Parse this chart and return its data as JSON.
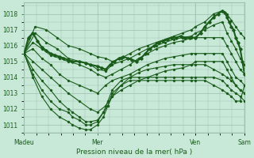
{
  "xlabel": "Pression niveau de la mer( hPa )",
  "xlabels": [
    "Madeu",
    "Mer",
    "Ven",
    "Sam"
  ],
  "xtick_positions": [
    0.0,
    0.333,
    0.778,
    1.0
  ],
  "ylim": [
    1010.5,
    1018.7
  ],
  "yticks": [
    1011,
    1012,
    1013,
    1014,
    1015,
    1016,
    1017,
    1018
  ],
  "bg_color": "#c8e8d8",
  "grid_color": "#9dbfaf",
  "line_color": "#1a5c1a",
  "lines": [
    [
      [
        0,
        1015.5
      ],
      [
        0.05,
        1017.2
      ],
      [
        0.1,
        1017.0
      ],
      [
        0.15,
        1016.5
      ],
      [
        0.2,
        1016.0
      ],
      [
        0.25,
        1015.8
      ],
      [
        0.3,
        1015.5
      ],
      [
        0.333,
        1015.3
      ],
      [
        0.37,
        1015.2
      ],
      [
        0.4,
        1015.0
      ],
      [
        0.44,
        1015.2
      ],
      [
        0.48,
        1015.5
      ],
      [
        0.52,
        1015.8
      ],
      [
        0.56,
        1016.0
      ],
      [
        0.6,
        1016.2
      ],
      [
        0.64,
        1016.4
      ],
      [
        0.68,
        1016.6
      ],
      [
        0.72,
        1016.8
      ],
      [
        0.76,
        1017.0
      ],
      [
        0.778,
        1017.2
      ],
      [
        0.82,
        1017.5
      ],
      [
        0.86,
        1018.0
      ],
      [
        0.9,
        1018.2
      ],
      [
        0.92,
        1018.0
      ],
      [
        0.94,
        1017.6
      ],
      [
        0.96,
        1017.2
      ],
      [
        0.98,
        1016.8
      ],
      [
        1.0,
        1016.5
      ]
    ],
    [
      [
        0,
        1015.5
      ],
      [
        0.05,
        1016.8
      ],
      [
        0.1,
        1016.2
      ],
      [
        0.15,
        1015.8
      ],
      [
        0.2,
        1015.2
      ],
      [
        0.25,
        1015.0
      ],
      [
        0.3,
        1014.8
      ],
      [
        0.333,
        1014.5
      ],
      [
        0.37,
        1014.4
      ],
      [
        0.4,
        1014.8
      ],
      [
        0.44,
        1015.0
      ],
      [
        0.48,
        1015.2
      ],
      [
        0.52,
        1015.5
      ],
      [
        0.56,
        1015.8
      ],
      [
        0.6,
        1016.0
      ],
      [
        0.64,
        1016.2
      ],
      [
        0.68,
        1016.4
      ],
      [
        0.72,
        1016.5
      ],
      [
        0.76,
        1016.6
      ],
      [
        0.778,
        1016.8
      ],
      [
        0.82,
        1017.0
      ],
      [
        0.86,
        1017.3
      ],
      [
        0.9,
        1017.5
      ],
      [
        0.92,
        1016.8
      ],
      [
        0.94,
        1016.3
      ],
      [
        0.96,
        1015.8
      ],
      [
        0.98,
        1015.2
      ],
      [
        1.0,
        1014.8
      ]
    ],
    [
      [
        0,
        1015.5
      ],
      [
        0.04,
        1016.2
      ],
      [
        0.08,
        1015.8
      ],
      [
        0.12,
        1015.4
      ],
      [
        0.16,
        1015.2
      ],
      [
        0.2,
        1015.0
      ],
      [
        0.25,
        1014.8
      ],
      [
        0.3,
        1014.5
      ],
      [
        0.333,
        1014.2
      ],
      [
        0.37,
        1014.0
      ],
      [
        0.4,
        1014.2
      ],
      [
        0.44,
        1014.5
      ],
      [
        0.48,
        1014.8
      ],
      [
        0.52,
        1015.2
      ],
      [
        0.56,
        1015.5
      ],
      [
        0.6,
        1015.8
      ],
      [
        0.64,
        1016.0
      ],
      [
        0.68,
        1016.2
      ],
      [
        0.72,
        1016.3
      ],
      [
        0.76,
        1016.5
      ],
      [
        0.778,
        1016.5
      ],
      [
        0.82,
        1016.5
      ],
      [
        0.86,
        1016.5
      ],
      [
        0.9,
        1016.5
      ],
      [
        0.92,
        1016.0
      ],
      [
        0.94,
        1015.5
      ],
      [
        0.96,
        1015.0
      ],
      [
        0.98,
        1014.5
      ],
      [
        1.0,
        1014.2
      ]
    ],
    [
      [
        0,
        1015.5
      ],
      [
        0.04,
        1015.8
      ],
      [
        0.08,
        1015.2
      ],
      [
        0.12,
        1014.8
      ],
      [
        0.16,
        1014.2
      ],
      [
        0.2,
        1013.8
      ],
      [
        0.25,
        1013.5
      ],
      [
        0.3,
        1013.2
      ],
      [
        0.333,
        1013.0
      ],
      [
        0.37,
        1013.5
      ],
      [
        0.4,
        1013.8
      ],
      [
        0.44,
        1014.0
      ],
      [
        0.48,
        1014.2
      ],
      [
        0.52,
        1014.5
      ],
      [
        0.56,
        1014.8
      ],
      [
        0.6,
        1015.0
      ],
      [
        0.64,
        1015.2
      ],
      [
        0.68,
        1015.3
      ],
      [
        0.72,
        1015.4
      ],
      [
        0.76,
        1015.5
      ],
      [
        0.778,
        1015.5
      ],
      [
        0.82,
        1015.5
      ],
      [
        0.86,
        1015.5
      ],
      [
        0.9,
        1015.5
      ],
      [
        0.92,
        1015.0
      ],
      [
        0.94,
        1014.5
      ],
      [
        0.96,
        1014.0
      ],
      [
        0.98,
        1013.8
      ],
      [
        1.0,
        1013.5
      ]
    ],
    [
      [
        0,
        1015.5
      ],
      [
        0.04,
        1015.0
      ],
      [
        0.08,
        1014.5
      ],
      [
        0.12,
        1014.0
      ],
      [
        0.16,
        1013.5
      ],
      [
        0.2,
        1013.0
      ],
      [
        0.25,
        1012.5
      ],
      [
        0.3,
        1012.0
      ],
      [
        0.333,
        1011.8
      ],
      [
        0.37,
        1012.2
      ],
      [
        0.4,
        1012.8
      ],
      [
        0.44,
        1013.2
      ],
      [
        0.48,
        1013.5
      ],
      [
        0.52,
        1013.8
      ],
      [
        0.56,
        1014.0
      ],
      [
        0.6,
        1014.2
      ],
      [
        0.64,
        1014.4
      ],
      [
        0.68,
        1014.5
      ],
      [
        0.72,
        1014.6
      ],
      [
        0.76,
        1014.8
      ],
      [
        0.778,
        1015.0
      ],
      [
        0.82,
        1015.0
      ],
      [
        0.86,
        1015.0
      ],
      [
        0.9,
        1015.0
      ],
      [
        0.92,
        1014.5
      ],
      [
        0.94,
        1014.0
      ],
      [
        0.96,
        1013.5
      ],
      [
        0.98,
        1013.2
      ],
      [
        1.0,
        1013.0
      ]
    ],
    [
      [
        0,
        1015.5
      ],
      [
        0.04,
        1014.5
      ],
      [
        0.08,
        1013.8
      ],
      [
        0.12,
        1013.2
      ],
      [
        0.16,
        1012.5
      ],
      [
        0.2,
        1012.0
      ],
      [
        0.22,
        1011.8
      ],
      [
        0.25,
        1011.5
      ],
      [
        0.28,
        1011.2
      ],
      [
        0.3,
        1011.2
      ],
      [
        0.333,
        1011.3
      ],
      [
        0.36,
        1011.8
      ],
      [
        0.38,
        1012.2
      ],
      [
        0.4,
        1012.8
      ],
      [
        0.44,
        1013.5
      ],
      [
        0.48,
        1014.0
      ],
      [
        0.52,
        1014.3
      ],
      [
        0.56,
        1014.5
      ],
      [
        0.6,
        1014.6
      ],
      [
        0.64,
        1014.7
      ],
      [
        0.68,
        1014.8
      ],
      [
        0.72,
        1014.8
      ],
      [
        0.76,
        1014.8
      ],
      [
        0.778,
        1014.8
      ],
      [
        0.82,
        1014.8
      ],
      [
        0.86,
        1014.5
      ],
      [
        0.9,
        1014.2
      ],
      [
        0.92,
        1014.0
      ],
      [
        0.94,
        1013.8
      ],
      [
        0.96,
        1013.5
      ],
      [
        0.98,
        1013.2
      ],
      [
        1.0,
        1013.0
      ]
    ],
    [
      [
        0,
        1015.5
      ],
      [
        0.04,
        1014.2
      ],
      [
        0.08,
        1013.2
      ],
      [
        0.12,
        1012.5
      ],
      [
        0.16,
        1012.0
      ],
      [
        0.2,
        1011.8
      ],
      [
        0.22,
        1011.5
      ],
      [
        0.25,
        1011.3
      ],
      [
        0.28,
        1011.0
      ],
      [
        0.3,
        1011.0
      ],
      [
        0.333,
        1011.2
      ],
      [
        0.36,
        1011.8
      ],
      [
        0.38,
        1012.5
      ],
      [
        0.4,
        1013.2
      ],
      [
        0.44,
        1013.8
      ],
      [
        0.48,
        1014.0
      ],
      [
        0.52,
        1014.0
      ],
      [
        0.56,
        1014.0
      ],
      [
        0.6,
        1014.0
      ],
      [
        0.64,
        1014.0
      ],
      [
        0.68,
        1014.0
      ],
      [
        0.72,
        1014.0
      ],
      [
        0.76,
        1014.0
      ],
      [
        0.778,
        1014.0
      ],
      [
        0.82,
        1014.0
      ],
      [
        0.86,
        1014.0
      ],
      [
        0.9,
        1013.8
      ],
      [
        0.92,
        1013.5
      ],
      [
        0.94,
        1013.2
      ],
      [
        0.96,
        1013.0
      ],
      [
        0.98,
        1012.8
      ],
      [
        1.0,
        1012.5
      ]
    ],
    [
      [
        0,
        1015.5
      ],
      [
        0.04,
        1014.0
      ],
      [
        0.08,
        1012.8
      ],
      [
        0.12,
        1012.0
      ],
      [
        0.16,
        1011.5
      ],
      [
        0.2,
        1011.2
      ],
      [
        0.22,
        1011.0
      ],
      [
        0.25,
        1010.8
      ],
      [
        0.28,
        1010.7
      ],
      [
        0.3,
        1010.7
      ],
      [
        0.333,
        1011.0
      ],
      [
        0.36,
        1011.5
      ],
      [
        0.38,
        1012.2
      ],
      [
        0.4,
        1013.0
      ],
      [
        0.44,
        1013.5
      ],
      [
        0.48,
        1013.8
      ],
      [
        0.52,
        1013.8
      ],
      [
        0.56,
        1013.8
      ],
      [
        0.6,
        1013.8
      ],
      [
        0.64,
        1013.8
      ],
      [
        0.68,
        1013.8
      ],
      [
        0.72,
        1013.8
      ],
      [
        0.76,
        1013.8
      ],
      [
        0.778,
        1013.8
      ],
      [
        0.82,
        1013.8
      ],
      [
        0.86,
        1013.5
      ],
      [
        0.9,
        1013.2
      ],
      [
        0.92,
        1013.0
      ],
      [
        0.94,
        1012.8
      ],
      [
        0.96,
        1012.5
      ],
      [
        0.98,
        1012.5
      ],
      [
        1.0,
        1013.5
      ]
    ]
  ],
  "main_line": [
    [
      0,
      1015.5
    ],
    [
      0.02,
      1016.5
    ],
    [
      0.04,
      1016.8
    ],
    [
      0.06,
      1016.3
    ],
    [
      0.08,
      1015.9
    ],
    [
      0.1,
      1015.7
    ],
    [
      0.12,
      1015.5
    ],
    [
      0.14,
      1015.4
    ],
    [
      0.16,
      1015.3
    ],
    [
      0.18,
      1015.2
    ],
    [
      0.2,
      1015.1
    ],
    [
      0.22,
      1015.0
    ],
    [
      0.25,
      1015.0
    ],
    [
      0.28,
      1014.9
    ],
    [
      0.3,
      1014.8
    ],
    [
      0.333,
      1014.7
    ],
    [
      0.35,
      1014.6
    ],
    [
      0.37,
      1014.5
    ],
    [
      0.39,
      1014.8
    ],
    [
      0.41,
      1015.0
    ],
    [
      0.43,
      1015.2
    ],
    [
      0.45,
      1015.3
    ],
    [
      0.47,
      1015.2
    ],
    [
      0.49,
      1015.1
    ],
    [
      0.51,
      1015.0
    ],
    [
      0.53,
      1015.2
    ],
    [
      0.55,
      1015.5
    ],
    [
      0.57,
      1015.8
    ],
    [
      0.59,
      1016.0
    ],
    [
      0.61,
      1016.2
    ],
    [
      0.63,
      1016.3
    ],
    [
      0.65,
      1016.4
    ],
    [
      0.67,
      1016.5
    ],
    [
      0.69,
      1016.5
    ],
    [
      0.71,
      1016.6
    ],
    [
      0.73,
      1016.5
    ],
    [
      0.75,
      1016.5
    ],
    [
      0.778,
      1016.5
    ],
    [
      0.8,
      1016.8
    ],
    [
      0.82,
      1017.2
    ],
    [
      0.84,
      1017.5
    ],
    [
      0.86,
      1017.8
    ],
    [
      0.88,
      1018.0
    ],
    [
      0.9,
      1018.2
    ],
    [
      0.91,
      1018.1
    ],
    [
      0.92,
      1017.8
    ],
    [
      0.93,
      1017.5
    ],
    [
      0.94,
      1017.2
    ],
    [
      0.95,
      1017.0
    ],
    [
      0.96,
      1016.5
    ],
    [
      0.97,
      1016.2
    ],
    [
      0.98,
      1015.8
    ],
    [
      0.99,
      1015.0
    ],
    [
      1.0,
      1014.2
    ]
  ]
}
